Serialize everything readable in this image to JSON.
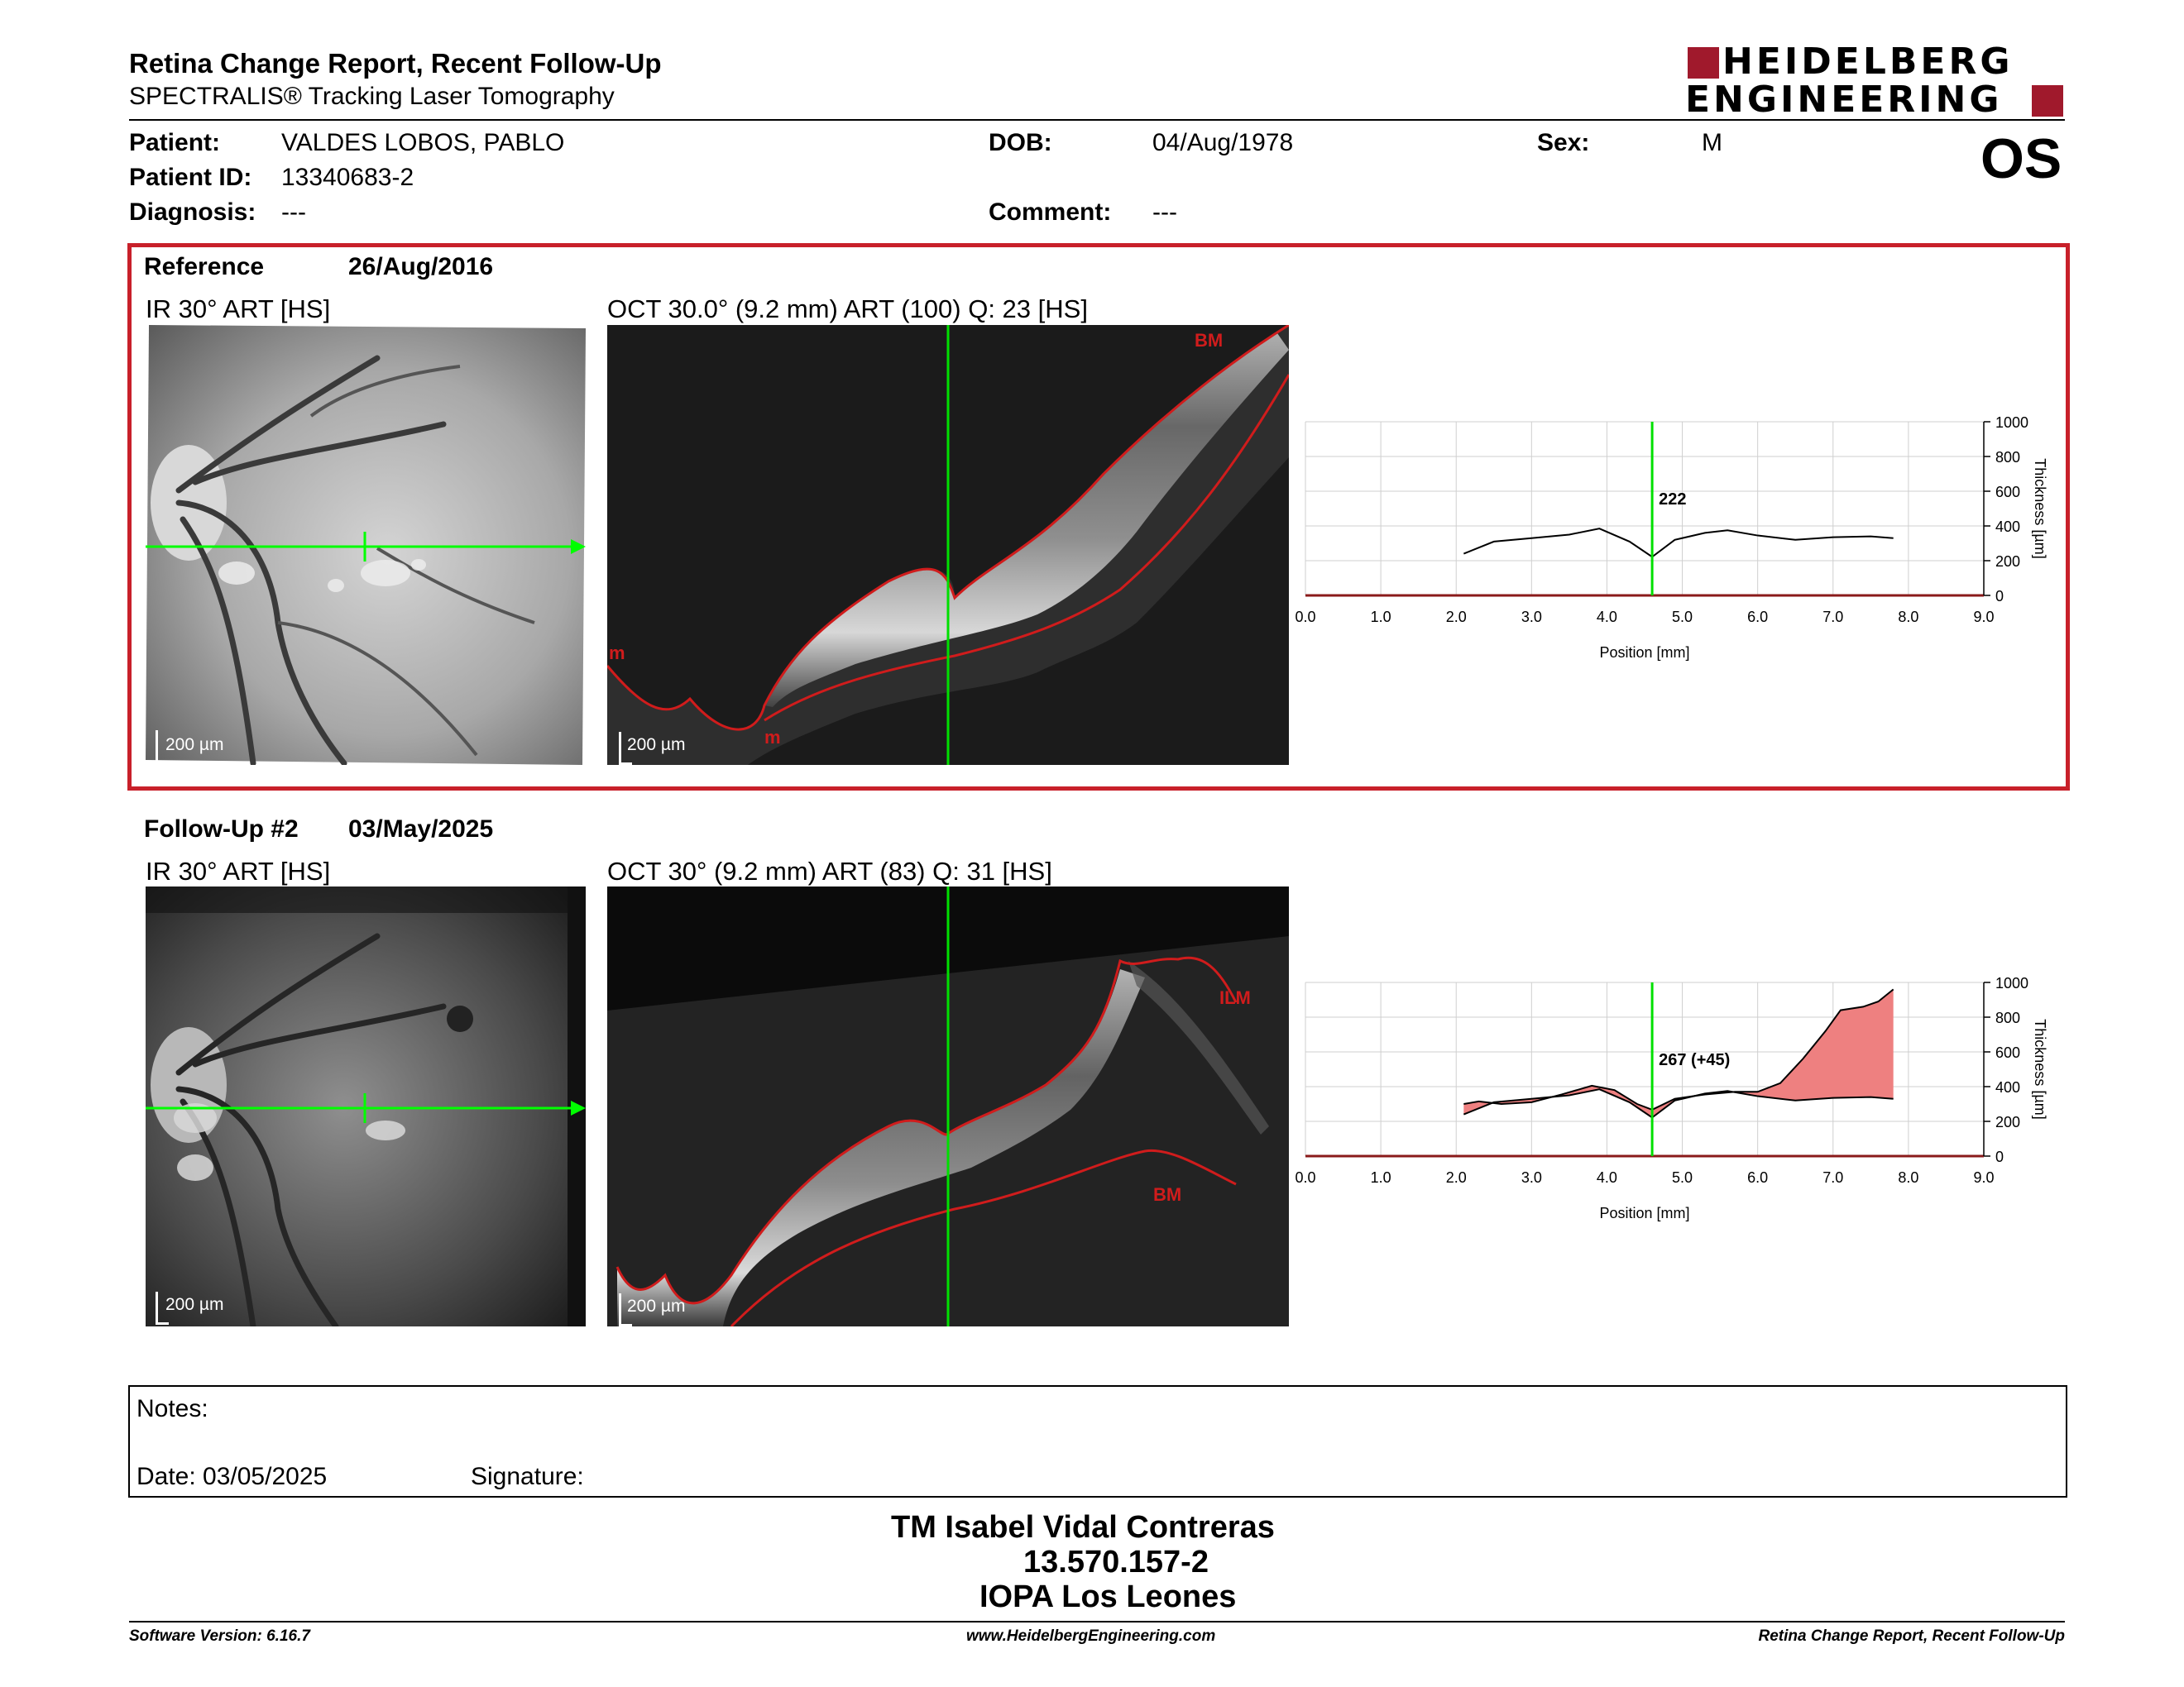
{
  "header": {
    "report_title": "Retina Change Report, Recent Follow-Up",
    "subtitle": "SPECTRALIS® Tracking Laser Tomography",
    "logo_line1": "HEIDELBERG",
    "logo_line2": "ENGINEERING",
    "eye": "OS"
  },
  "patient": {
    "patient_label": "Patient:",
    "patient_value": "VALDES LOBOS, PABLO",
    "dob_label": "DOB:",
    "dob_value": "04/Aug/1978",
    "sex_label": "Sex:",
    "sex_value": "M",
    "id_label": "Patient ID:",
    "id_value": "13340683-2",
    "diagnosis_label": "Diagnosis:",
    "diagnosis_value": "---",
    "comment_label": "Comment:",
    "comment_value": "---"
  },
  "reference": {
    "label": "Reference",
    "date": "26/Aug/2016",
    "ir_title": "IR 30° ART [HS]",
    "oct_title": "OCT 30.0° (9.2 mm) ART (100) Q: 23 [HS]",
    "ir_scale": "200 µm",
    "oct_scale": "200 µm",
    "seg_labels": [
      "BM",
      "m",
      "m"
    ],
    "readout": "222"
  },
  "followup": {
    "label": "Follow-Up #2",
    "date": "03/May/2025",
    "ir_title": "IR 30° ART [HS]",
    "oct_title": "OCT 30° (9.2 mm) ART (83) Q: 31 [HS]",
    "ir_scale": "200 µm",
    "oct_scale": "200 µm",
    "seg_labels": [
      "ILM",
      "BM"
    ],
    "readout": "267 (+45)"
  },
  "chart_axes": {
    "xlabel": "Position [mm]",
    "ylabel": "Thickness [µm]",
    "xticks": [
      "0.0",
      "1.0",
      "2.0",
      "3.0",
      "4.0",
      "5.0",
      "6.0",
      "7.0",
      "8.0",
      "9.0"
    ],
    "yticks": [
      "0",
      "200",
      "400",
      "600",
      "800",
      "1000"
    ]
  },
  "chart_data": [
    {
      "type": "line",
      "xlabel": "Position [mm]",
      "ylabel": "Thickness [µm]",
      "xlim": [
        0,
        9.0
      ],
      "ylim": [
        0,
        1000
      ],
      "grid": true,
      "marker_x": 4.6,
      "marker_label": "222",
      "series": [
        {
          "x": [
            2.1,
            2.5,
            3.0,
            3.5,
            3.9,
            4.3,
            4.6,
            4.9,
            5.3,
            5.6,
            6.0,
            6.5,
            7.0,
            7.5,
            7.8
          ],
          "y": [
            240,
            310,
            330,
            350,
            385,
            310,
            222,
            320,
            360,
            375,
            345,
            320,
            335,
            340,
            330
          ]
        }
      ]
    },
    {
      "type": "area",
      "xlabel": "Position [mm]",
      "ylabel": "Thickness [µm]",
      "xlim": [
        0,
        9.0
      ],
      "ylim": [
        0,
        1000
      ],
      "grid": true,
      "marker_x": 4.6,
      "marker_label": "267 (+45)",
      "series": [
        {
          "name": "",
          "x": [
            2.1,
            2.3,
            2.6,
            3.0,
            3.4,
            3.8,
            4.1,
            4.4,
            4.6,
            4.9,
            5.3,
            5.7,
            6.0,
            6.3,
            6.6,
            6.9,
            7.1,
            7.4,
            7.6,
            7.8
          ],
          "y": [
            300,
            315,
            300,
            310,
            355,
            405,
            380,
            300,
            267,
            330,
            355,
            370,
            370,
            420,
            560,
            720,
            840,
            860,
            890,
            960
          ]
        },
        {
          "name": "",
          "x": [
            2.1,
            2.5,
            3.0,
            3.5,
            3.9,
            4.3,
            4.6,
            4.9,
            5.3,
            5.6,
            6.0,
            6.5,
            7.0,
            7.5,
            7.8
          ],
          "y": [
            240,
            310,
            330,
            350,
            385,
            310,
            222,
            320,
            360,
            375,
            345,
            320,
            335,
            340,
            330
          ]
        }
      ]
    }
  ],
  "notes": {
    "notes_label": "Notes:",
    "date_label": "Date: 03/05/2025",
    "signature_label": "Signature:"
  },
  "signer": {
    "name": "TM Isabel Vidal Contreras",
    "id": "13.570.157-2",
    "institution": "IOPA Los Leones"
  },
  "footer": {
    "software": "Software Version: 6.16.7",
    "website": "www.HeidelbergEngineering.com",
    "report": "Retina Change Report, Recent Follow-Up"
  }
}
